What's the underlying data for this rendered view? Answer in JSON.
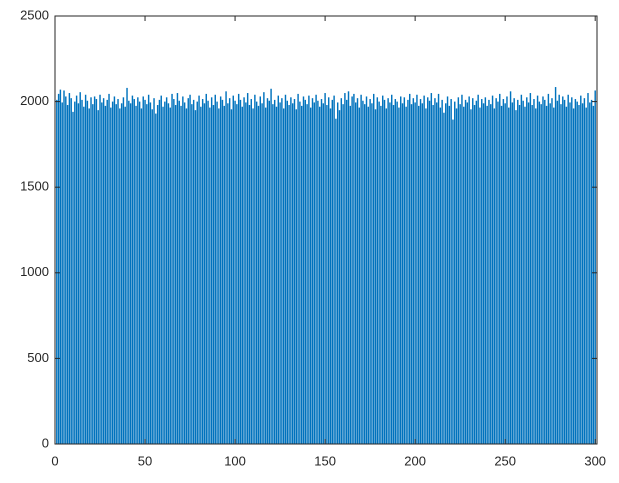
{
  "chart_data": {
    "type": "bar",
    "color": "#0072bd",
    "x": [
      1,
      2,
      3,
      4,
      5,
      6,
      7,
      8,
      9,
      10,
      11,
      12,
      13,
      14,
      15,
      16,
      17,
      18,
      19,
      20,
      21,
      22,
      23,
      24,
      25,
      26,
      27,
      28,
      29,
      30,
      31,
      32,
      33,
      34,
      35,
      36,
      37,
      38,
      39,
      40,
      41,
      42,
      43,
      44,
      45,
      46,
      47,
      48,
      49,
      50,
      51,
      52,
      53,
      54,
      55,
      56,
      57,
      58,
      59,
      60,
      61,
      62,
      63,
      64,
      65,
      66,
      67,
      68,
      69,
      70,
      71,
      72,
      73,
      74,
      75,
      76,
      77,
      78,
      79,
      80,
      81,
      82,
      83,
      84,
      85,
      86,
      87,
      88,
      89,
      90,
      91,
      92,
      93,
      94,
      95,
      96,
      97,
      98,
      99,
      100,
      101,
      102,
      103,
      104,
      105,
      106,
      107,
      108,
      109,
      110,
      111,
      112,
      113,
      114,
      115,
      116,
      117,
      118,
      119,
      120,
      121,
      122,
      123,
      124,
      125,
      126,
      127,
      128,
      129,
      130,
      131,
      132,
      133,
      134,
      135,
      136,
      137,
      138,
      139,
      140,
      141,
      142,
      143,
      144,
      145,
      146,
      147,
      148,
      149,
      150,
      151,
      152,
      153,
      154,
      155,
      156,
      157,
      158,
      159,
      160,
      161,
      162,
      163,
      164,
      165,
      166,
      167,
      168,
      169,
      170,
      171,
      172,
      173,
      174,
      175,
      176,
      177,
      178,
      179,
      180,
      181,
      182,
      183,
      184,
      185,
      186,
      187,
      188,
      189,
      190,
      191,
      192,
      193,
      194,
      195,
      196,
      197,
      198,
      199,
      200,
      201,
      202,
      203,
      204,
      205,
      206,
      207,
      208,
      209,
      210,
      211,
      212,
      213,
      214,
      215,
      216,
      217,
      218,
      219,
      220,
      221,
      222,
      223,
      224,
      225,
      226,
      227,
      228,
      229,
      230,
      231,
      232,
      233,
      234,
      235,
      236,
      237,
      238,
      239,
      240,
      241,
      242,
      243,
      244,
      245,
      246,
      247,
      248,
      249,
      250,
      251,
      252,
      253,
      254,
      255,
      256,
      257,
      258,
      259,
      260,
      261,
      262,
      263,
      264,
      265,
      266,
      267,
      268,
      269,
      270,
      271,
      272,
      273,
      274,
      275,
      276,
      277,
      278,
      279,
      280,
      281,
      282,
      283,
      284,
      285,
      286,
      287,
      288,
      289,
      290,
      291,
      292,
      293,
      294,
      295,
      296,
      297,
      298,
      299,
      300
    ],
    "values": [
      2010,
      2045,
      2070,
      1995,
      2065,
      2030,
      1980,
      2050,
      2020,
      1940,
      2000,
      2035,
      1990,
      2055,
      2010,
      1970,
      2040,
      2005,
      1960,
      2025,
      1985,
      2030,
      2015,
      1950,
      2040,
      1995,
      2020,
      1975,
      2010,
      2045,
      1965,
      2000,
      2030,
      1985,
      2015,
      1960,
      1990,
      2025,
      1970,
      2080,
      2005,
      1990,
      2035,
      2015,
      1975,
      2025,
      2000,
      1960,
      2030,
      2010,
      1985,
      2040,
      1995,
      1955,
      2020,
      1930,
      1980,
      2010,
      2035,
      1970,
      2000,
      2025,
      1990,
      1965,
      2045,
      2015,
      1980,
      2050,
      2005,
      1975,
      2030,
      1995,
      1960,
      2020,
      2040,
      1985,
      2010,
      1950,
      2000,
      2035,
      1970,
      2015,
      1990,
      2045,
      2005,
      1965,
      2025,
      1980,
      2040,
      2000,
      1960,
      2030,
      2010,
      1975,
      2060,
      1990,
      2020,
      1955,
      2035,
      2005,
      1985,
      2045,
      2010,
      1970,
      2025,
      1995,
      2050,
      1980,
      2015,
      1960,
      2040,
      2000,
      1975,
      2030,
      1990,
      2055,
      1965,
      2020,
      2005,
      2075,
      1985,
      2010,
      1970,
      2035,
      1995,
      2020,
      1960,
      2040,
      2005,
      1980,
      2025,
      1990,
      2015,
      1955,
      2045,
      2000,
      1975,
      2030,
      2010,
      1985,
      2035,
      1965,
      2020,
      1995,
      2040,
      2005,
      1970,
      2015,
      1990,
      2050,
      1980,
      2025,
      1960,
      2010,
      2035,
      1900,
      1995,
      1950,
      2020,
      1985,
      2050,
      2010,
      2060,
      1975,
      2030,
      2045,
      1995,
      2020,
      1965,
      2040,
      2005,
      1985,
      2030,
      1970,
      2015,
      1990,
      2045,
      1955,
      2025,
      2000,
      1975,
      2035,
      2010,
      1960,
      2020,
      1995,
      2040,
      1980,
      2015,
      2000,
      1965,
      2030,
      1990,
      2025,
      1970,
      2010,
      2045,
      1985,
      2020,
      1995,
      2040,
      1975,
      2015,
      1990,
      2035,
      1960,
      2025,
      2005,
      2050,
      1980,
      2020,
      1995,
      2045,
      1965,
      2010,
      1935,
      1990,
      2030,
      1975,
      2015,
      1895,
      2000,
      1960,
      2025,
      1985,
      2040,
      1970,
      2010,
      1995,
      2030,
      1955,
      2020,
      1980,
      2005,
      2040,
      1965,
      2015,
      1990,
      2025,
      1975,
      2010,
      1985,
      2035,
      1960,
      2020,
      2000,
      2045,
      1975,
      2015,
      1990,
      2030,
      1965,
      2060,
      1995,
      2020,
      1950,
      2010,
      1980,
      2040,
      2005,
      1970,
      2025,
      1995,
      2050,
      1980,
      2015,
      1960,
      2035,
      2000,
      1985,
      2030,
      2010,
      1975,
      2045,
      1990,
      2020,
      1965,
      2085,
      2005,
      2040,
      1985,
      2030,
      2010,
      1970,
      2040,
      1995,
      2025,
      1960,
      2015,
      2000,
      1980,
      2035,
      1990,
      2020,
      1965,
      2050,
      1995,
      2010,
      1975,
      2065
    ],
    "xlim": [
      0,
      301
    ],
    "xticks": [
      0,
      50,
      100,
      150,
      200,
      250,
      300
    ],
    "ylim": [
      0,
      2500
    ],
    "yticks": [
      0,
      500,
      1000,
      1500,
      2000,
      2500
    ]
  }
}
